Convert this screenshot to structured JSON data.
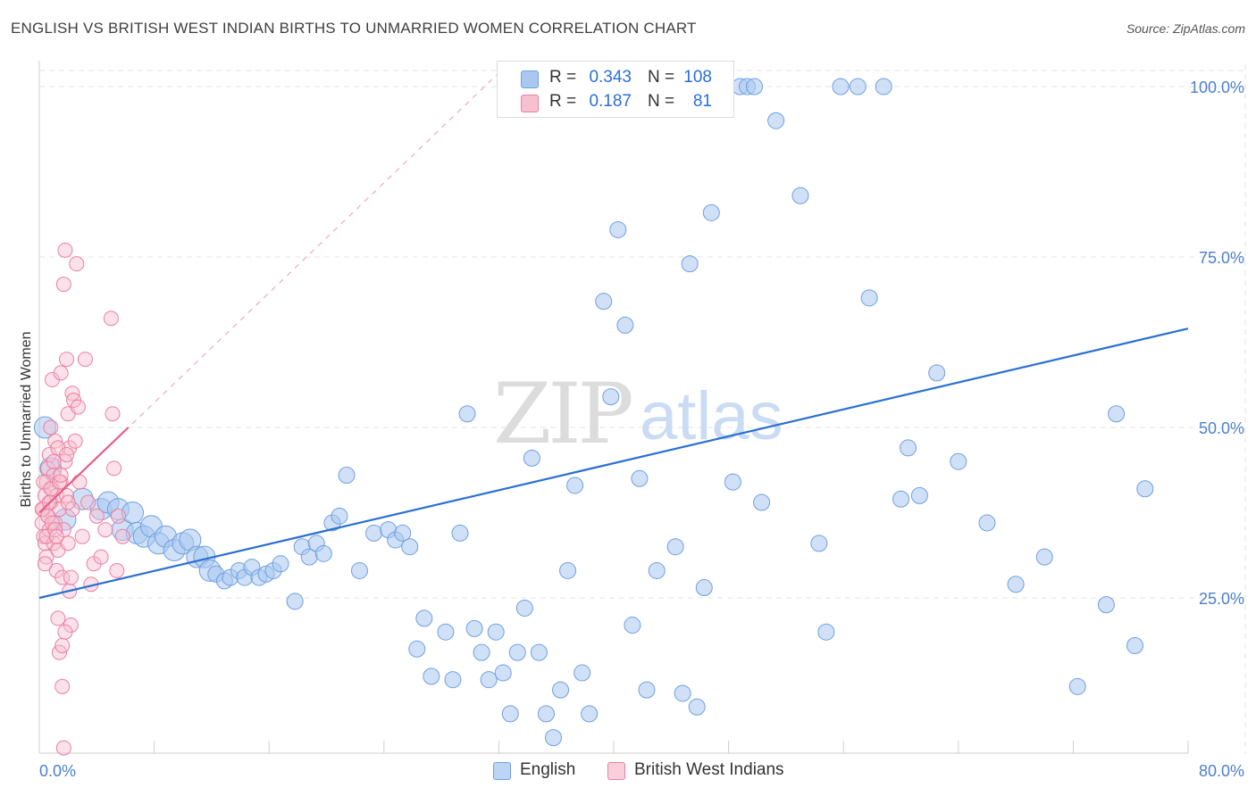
{
  "header": {
    "title": "ENGLISH VS BRITISH WEST INDIAN BIRTHS TO UNMARRIED WOMEN CORRELATION CHART",
    "source": "Source: ZipAtlas.com"
  },
  "watermark": {
    "zip": "ZIP",
    "atlas": "atlas"
  },
  "colors": {
    "english_fill": "#a9c8f0",
    "english_stroke": "#6f9fe0",
    "english_line": "#2a6fd4",
    "bwi_fill": "#f7bfd0",
    "bwi_stroke": "#ea7fa0",
    "bwi_line": "#e85c86",
    "grid": "#e3e3e3",
    "axis_label": "#4a7fd1"
  },
  "legend": {
    "rows": [
      {
        "r_label": "R =",
        "r_value": "0.343",
        "n_label": "N =",
        "n_value": "108"
      },
      {
        "r_label": "R =",
        "r_value": "0.187",
        "n_label": "N =",
        "n_value": "81"
      }
    ]
  },
  "chart_data": {
    "type": "scatter",
    "title": "ENGLISH VS BRITISH WEST INDIAN BIRTHS TO UNMARRIED WOMEN CORRELATION CHART",
    "xlabel": "",
    "ylabel": "Births to Unmarried Women",
    "xlim": [
      0,
      80
    ],
    "ylim": [
      0,
      102.5
    ],
    "x_tick_labels": [
      "0.0%",
      "80.0%"
    ],
    "y_tick_labels": [
      "25.0%",
      "50.0%",
      "75.0%",
      "100.0%"
    ],
    "y_ticks": [
      25,
      50,
      75,
      100
    ],
    "series": [
      {
        "name": "English",
        "r": 0.343,
        "n": 108,
        "trend": {
          "x": [
            0,
            80
          ],
          "y": [
            25,
            64.5
          ]
        },
        "points": [
          [
            0.4,
            50
          ],
          [
            0.8,
            44
          ],
          [
            1.8,
            36.5
          ],
          [
            3.0,
            39.5
          ],
          [
            4.3,
            38
          ],
          [
            4.8,
            39
          ],
          [
            5.5,
            38
          ],
          [
            5.8,
            35
          ],
          [
            6.5,
            37.5
          ],
          [
            6.8,
            34.5
          ],
          [
            7.3,
            34
          ],
          [
            7.8,
            35.5
          ],
          [
            8.3,
            33
          ],
          [
            8.8,
            34
          ],
          [
            9.4,
            32
          ],
          [
            10.0,
            33
          ],
          [
            10.5,
            33.5
          ],
          [
            11.0,
            31
          ],
          [
            11.5,
            31
          ],
          [
            11.9,
            29
          ],
          [
            12.3,
            28.5
          ],
          [
            12.9,
            27.5
          ],
          [
            13.3,
            28
          ],
          [
            13.9,
            29
          ],
          [
            14.3,
            28
          ],
          [
            14.8,
            29.5
          ],
          [
            15.3,
            28
          ],
          [
            15.8,
            28.5
          ],
          [
            16.3,
            29
          ],
          [
            16.8,
            30
          ],
          [
            17.8,
            24.5
          ],
          [
            18.3,
            32.5
          ],
          [
            18.8,
            31
          ],
          [
            19.3,
            33
          ],
          [
            19.8,
            31.5
          ],
          [
            20.4,
            36
          ],
          [
            20.9,
            37
          ],
          [
            21.4,
            43
          ],
          [
            22.3,
            29
          ],
          [
            23.3,
            34.5
          ],
          [
            24.3,
            35
          ],
          [
            24.8,
            33.5
          ],
          [
            25.3,
            34.5
          ],
          [
            25.8,
            32.5
          ],
          [
            26.3,
            17.5
          ],
          [
            26.8,
            22
          ],
          [
            27.3,
            13.5
          ],
          [
            28.3,
            20
          ],
          [
            28.8,
            13
          ],
          [
            29.3,
            34.5
          ],
          [
            29.8,
            52
          ],
          [
            30.3,
            20.5
          ],
          [
            30.8,
            17
          ],
          [
            31.3,
            13
          ],
          [
            31.8,
            20
          ],
          [
            32.3,
            14
          ],
          [
            32.8,
            8
          ],
          [
            33.3,
            17
          ],
          [
            33.8,
            23.5
          ],
          [
            34.3,
            45.5
          ],
          [
            34.8,
            17
          ],
          [
            35.3,
            8
          ],
          [
            35.8,
            4.5
          ],
          [
            36.3,
            11.5
          ],
          [
            36.8,
            29
          ],
          [
            37.3,
            41.5
          ],
          [
            37.8,
            14
          ],
          [
            38.3,
            8
          ],
          [
            39.3,
            68.5
          ],
          [
            39.8,
            54.5
          ],
          [
            40.3,
            79
          ],
          [
            40.8,
            65
          ],
          [
            41.3,
            21
          ],
          [
            41.8,
            42.5
          ],
          [
            42.3,
            11.5
          ],
          [
            43.0,
            29
          ],
          [
            44.3,
            32.5
          ],
          [
            44.8,
            11
          ],
          [
            45.3,
            74
          ],
          [
            45.8,
            9
          ],
          [
            46.3,
            26.5
          ],
          [
            46.8,
            81.5
          ],
          [
            48.3,
            42
          ],
          [
            48.8,
            100
          ],
          [
            49.3,
            100
          ],
          [
            49.8,
            100
          ],
          [
            50.3,
            39
          ],
          [
            51.3,
            95
          ],
          [
            53.0,
            84
          ],
          [
            54.3,
            33
          ],
          [
            54.8,
            20
          ],
          [
            55.8,
            100
          ],
          [
            57.0,
            100
          ],
          [
            57.8,
            69
          ],
          [
            58.8,
            100
          ],
          [
            60.0,
            39.5
          ],
          [
            61.3,
            40
          ],
          [
            72.3,
            12
          ],
          [
            74.3,
            24
          ],
          [
            76.3,
            18
          ],
          [
            66.0,
            36
          ],
          [
            68.0,
            27
          ],
          [
            64.0,
            45
          ],
          [
            70.0,
            31
          ],
          [
            77.0,
            41
          ],
          [
            62.5,
            58
          ],
          [
            60.5,
            47
          ],
          [
            75.0,
            52
          ]
        ],
        "sizes": "larger points near 0-12% x"
      },
      {
        "name": "British West Indians",
        "r": 0.187,
        "n": 81,
        "trend": {
          "x": [
            0,
            6.2
          ],
          "y": [
            37.5,
            50
          ]
        },
        "trend_extended": {
          "x": [
            0,
            32
          ],
          "y": [
            37.5,
            102
          ]
        },
        "points": [
          [
            0.2,
            36
          ],
          [
            0.3,
            38
          ],
          [
            0.3,
            34
          ],
          [
            0.4,
            40
          ],
          [
            0.4,
            33
          ],
          [
            0.5,
            42
          ],
          [
            0.5,
            31
          ],
          [
            0.6,
            44
          ],
          [
            0.6,
            37
          ],
          [
            0.7,
            46
          ],
          [
            0.7,
            35
          ],
          [
            0.8,
            50
          ],
          [
            0.8,
            39
          ],
          [
            0.9,
            57
          ],
          [
            0.9,
            41
          ],
          [
            1.0,
            43
          ],
          [
            1.0,
            33
          ],
          [
            1.1,
            36
          ],
          [
            1.1,
            48
          ],
          [
            1.2,
            29
          ],
          [
            1.2,
            40
          ],
          [
            1.3,
            22
          ],
          [
            1.3,
            32
          ],
          [
            1.4,
            17
          ],
          [
            1.4,
            38
          ],
          [
            1.5,
            58
          ],
          [
            1.5,
            42
          ],
          [
            1.6,
            12
          ],
          [
            1.6,
            28
          ],
          [
            1.7,
            71
          ],
          [
            1.7,
            35
          ],
          [
            1.8,
            76
          ],
          [
            1.8,
            45
          ],
          [
            1.9,
            60
          ],
          [
            1.9,
            40
          ],
          [
            2.0,
            33
          ],
          [
            2.0,
            52
          ],
          [
            2.1,
            26
          ],
          [
            2.1,
            47
          ],
          [
            2.2,
            28
          ],
          [
            2.2,
            21
          ],
          [
            2.3,
            55
          ],
          [
            2.3,
            38
          ],
          [
            2.4,
            54
          ],
          [
            2.5,
            48
          ],
          [
            2.6,
            74
          ],
          [
            2.7,
            53
          ],
          [
            2.8,
            42
          ],
          [
            3.0,
            34
          ],
          [
            3.2,
            60
          ],
          [
            3.4,
            39
          ],
          [
            3.6,
            27
          ],
          [
            3.8,
            30
          ],
          [
            4.0,
            37
          ],
          [
            4.3,
            31
          ],
          [
            4.6,
            35
          ],
          [
            5.0,
            66
          ],
          [
            5.1,
            52
          ],
          [
            5.2,
            44
          ],
          [
            5.4,
            29
          ],
          [
            5.5,
            37
          ],
          [
            5.8,
            34
          ],
          [
            0.2,
            38
          ],
          [
            0.3,
            42
          ],
          [
            0.4,
            30
          ],
          [
            0.5,
            34
          ],
          [
            0.6,
            37
          ],
          [
            0.7,
            39
          ],
          [
            0.8,
            41
          ],
          [
            0.9,
            36
          ],
          [
            1.0,
            45
          ],
          [
            1.1,
            35
          ],
          [
            1.2,
            34
          ],
          [
            1.3,
            47
          ],
          [
            1.4,
            42
          ],
          [
            1.5,
            43
          ],
          [
            1.6,
            18
          ],
          [
            1.7,
            3
          ],
          [
            1.8,
            20
          ],
          [
            1.9,
            46
          ],
          [
            2.0,
            39
          ]
        ]
      }
    ]
  },
  "bottom_legend": {
    "english": "English",
    "bwi": "British West Indians"
  },
  "axis": {
    "x_min_label": "0.0%",
    "x_max_label": "80.0%",
    "ylabel": "Births to Unmarried Women"
  }
}
